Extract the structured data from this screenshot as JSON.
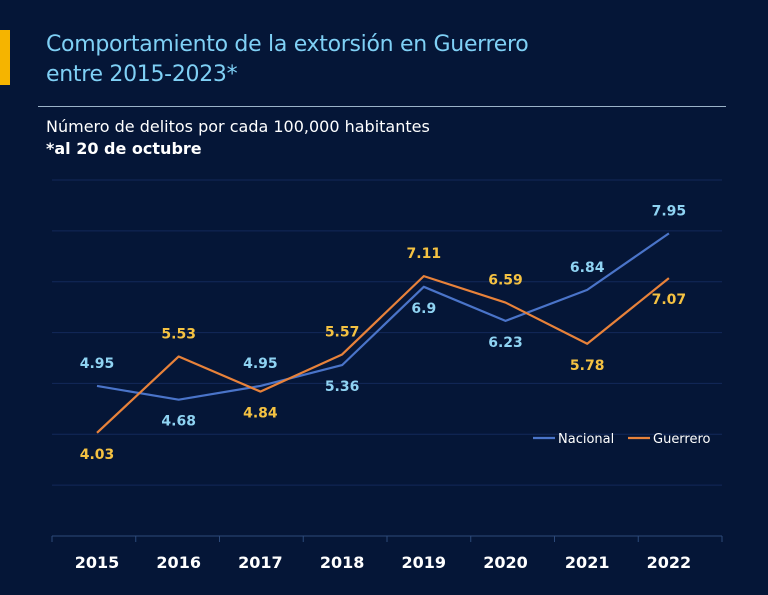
{
  "header": {
    "title_line1": "Comportamiento de la extorsión en Guerrero",
    "title_line2": "entre 2015-2023*",
    "subtitle": "Número de delitos por cada 100,000 habitantes",
    "note": "*al 20 de octubre"
  },
  "colors": {
    "background": "#051637",
    "accent": "#f5b400",
    "title": "#7fd0f5",
    "nacional_line": "#4a74c9",
    "guerrero_line": "#e8823a",
    "nacional_label": "#8fd3f2",
    "guerrero_label": "#f5c242"
  },
  "chart_data": {
    "type": "line",
    "title": "Comportamiento de la extorsión en Guerrero entre 2015-2023*",
    "ylabel": "Número de delitos por cada 100,000 habitantes",
    "xlabel": "",
    "ylim": [
      2,
      9
    ],
    "grid": true,
    "legend": "bottom-right",
    "categories": [
      "2015",
      "2016",
      "2017",
      "2018",
      "2019",
      "2020",
      "2021",
      "2022"
    ],
    "series": [
      {
        "name": "Nacional",
        "values": [
          4.95,
          4.68,
          4.95,
          5.36,
          6.9,
          6.23,
          6.84,
          7.95
        ]
      },
      {
        "name": "Guerrero",
        "values": [
          4.03,
          5.53,
          4.84,
          5.57,
          7.11,
          6.59,
          5.78,
          7.07
        ]
      }
    ]
  }
}
